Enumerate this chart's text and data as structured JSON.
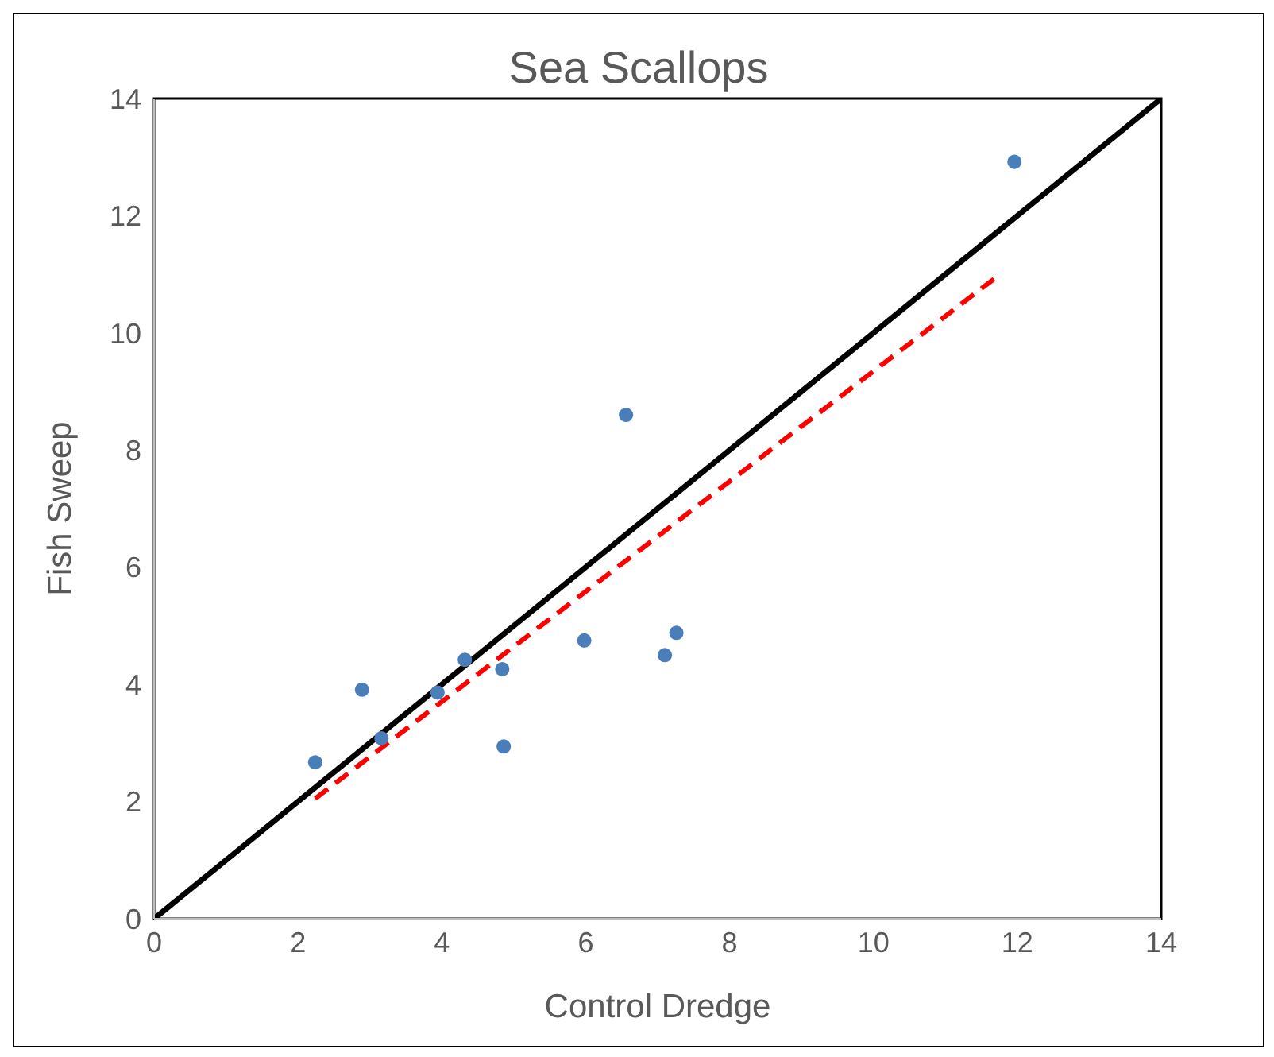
{
  "chart_data": {
    "type": "scatter",
    "title": "Sea Scallops",
    "xlabel": "Control Dredge",
    "ylabel": "Fish Sweep",
    "xlim": [
      0,
      14
    ],
    "ylim": [
      0,
      14
    ],
    "xticks": [
      0,
      2,
      4,
      6,
      8,
      10,
      12,
      14
    ],
    "yticks": [
      0,
      2,
      4,
      6,
      8,
      10,
      12,
      14
    ],
    "grid": false,
    "legend": false,
    "series": [
      {
        "color": "#4a7ebb",
        "marker": "circle",
        "x": [
          2.24,
          2.89,
          3.16,
          3.94,
          4.32,
          4.84,
          4.86,
          5.98,
          6.56,
          7.1,
          7.26,
          11.96
        ],
        "values": [
          2.67,
          3.91,
          3.08,
          3.86,
          4.42,
          4.26,
          2.94,
          4.75,
          8.6,
          4.5,
          4.88,
          12.92
        ]
      },
      {
        "type": "line",
        "color": "#000000",
        "line_style": "solid",
        "marker": "none",
        "x": [
          0,
          14
        ],
        "values": [
          0,
          14
        ]
      },
      {
        "type": "line",
        "color": "#ff0000",
        "line_style": "dashed",
        "marker": "none",
        "x": [
          2.24,
          11.76
        ],
        "values": [
          2.05,
          11.0
        ]
      }
    ]
  }
}
